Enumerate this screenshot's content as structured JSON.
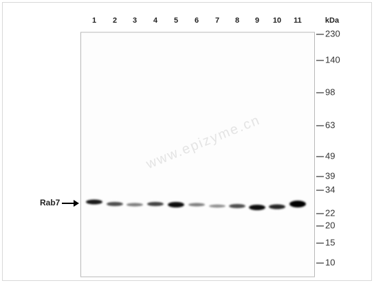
{
  "lanes": [
    "1",
    "2",
    "3",
    "4",
    "5",
    "6",
    "7",
    "8",
    "9",
    "10",
    "11"
  ],
  "unit": "kDa",
  "markers": [
    "230",
    "140",
    "98",
    "63",
    "49",
    "39",
    "34",
    "22",
    "20",
    "15",
    "10"
  ],
  "protein_label": "Rab7",
  "watermark": "www.epizyme.cn"
}
